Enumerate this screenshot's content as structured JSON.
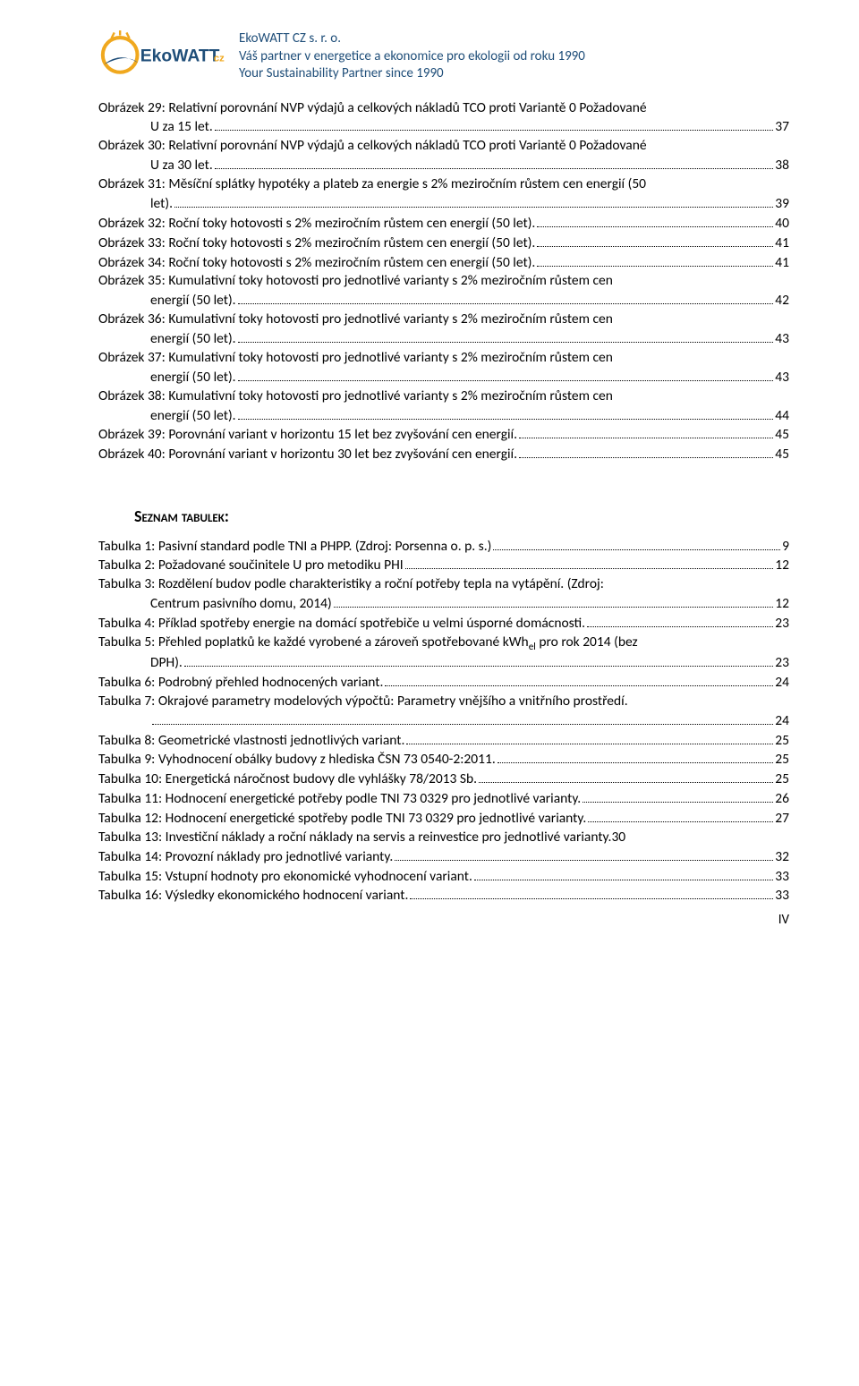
{
  "header": {
    "company": "EkoWATT CZ s. r. o.",
    "tagline_cs": "Váš partner v energetice a ekonomice pro ekologii od roku 1990",
    "tagline_en": "Your Sustainability Partner since 1990",
    "logo": {
      "text_main": "EkoWATT",
      "text_suffix": "cz",
      "colors": {
        "ring_outer": "#f0a81e",
        "ring_inner": "#ffffff",
        "swoosh": "#1f4e79",
        "text_main": "#1f4e79",
        "text_suffix": "#f0a81e"
      }
    },
    "text_color": "#1f4e79"
  },
  "figures": [
    {
      "lines": [
        "Obrázek 29: Relativní porovnání NVP výdajů a celkových nákladů TCO proti Variantě 0 Požadované",
        "U za 15 let."
      ],
      "page": "37",
      "indent_last": true
    },
    {
      "lines": [
        "Obrázek 30: Relativní porovnání NVP výdajů a celkových nákladů TCO proti Variantě 0 Požadované",
        "U za 30 let."
      ],
      "page": "38",
      "indent_last": true
    },
    {
      "lines": [
        "Obrázek 31: Měsíční splátky hypotéky a plateb za energie s 2% meziročním růstem cen energií (50",
        "let)."
      ],
      "page": "39",
      "indent_last": true
    },
    {
      "lines": [
        "Obrázek 32: Roční toky hotovosti s 2% meziročním růstem cen energií (50 let)."
      ],
      "page": "40"
    },
    {
      "lines": [
        "Obrázek 33: Roční toky hotovosti s 2% meziročním růstem cen energií (50 let)."
      ],
      "page": "41"
    },
    {
      "lines": [
        "Obrázek 34: Roční toky hotovosti s 2% meziročním růstem cen energií (50 let)."
      ],
      "page": "41"
    },
    {
      "lines": [
        "Obrázek 35: Kumulativní toky hotovosti pro jednotlivé varianty s 2% meziročním růstem cen",
        "energií (50 let)."
      ],
      "page": "42",
      "indent_last": true
    },
    {
      "lines": [
        "Obrázek 36: Kumulativní toky hotovosti pro jednotlivé varianty s 2% meziročním růstem cen",
        "energií (50 let)."
      ],
      "page": "43",
      "indent_last": true
    },
    {
      "lines": [
        "Obrázek 37: Kumulativní toky hotovosti pro jednotlivé varianty s 2% meziročním růstem cen",
        "energií (50 let)."
      ],
      "page": "43",
      "indent_last": true
    },
    {
      "lines": [
        "Obrázek 38: Kumulativní toky hotovosti pro jednotlivé varianty s 2% meziročním růstem cen",
        "energií (50 let)."
      ],
      "page": "44",
      "indent_last": true
    },
    {
      "lines": [
        "Obrázek 39: Porovnání variant v horizontu 15 let bez zvyšování cen energií."
      ],
      "page": "45"
    },
    {
      "lines": [
        "Obrázek 40: Porovnání variant v horizontu 30 let bez zvyšování cen energií."
      ],
      "page": "45"
    }
  ],
  "tables_heading": "Seznam tabulek:",
  "tables": [
    {
      "lines": [
        "Tabulka 1: Pasivní standard podle TNI a PHPP. (Zdroj: Porsenna o. p. s.)"
      ],
      "page": "9"
    },
    {
      "lines": [
        "Tabulka 2: Požadované součinitele U pro metodiku PHI"
      ],
      "page": "12"
    },
    {
      "lines": [
        "Tabulka 3: Rozdělení budov podle charakteristiky a roční potřeby tepla na vytápění. (Zdroj:",
        "Centrum pasivního domu, 2014)"
      ],
      "page": "12",
      "indent_last": true
    },
    {
      "lines": [
        "Tabulka 4: Příklad spotřeby energie na domácí spotřebiče u velmi úsporné domácnosti."
      ],
      "page": "23"
    },
    {
      "lines": [
        "Tabulka 5: Přehled poplatků ke každé vyrobené a zároveň spotřebované kWh<sub>el</sub> pro rok 2014 (bez",
        "DPH)."
      ],
      "page": "23",
      "indent_last": true,
      "html": true
    },
    {
      "lines": [
        "Tabulka 6: Podrobný přehled hodnocených variant."
      ],
      "page": "24"
    },
    {
      "lines": [
        "Tabulka 7: Okrajové parametry modelových výpočtů: Parametry vnějšího a vnitřního prostředí.",
        ""
      ],
      "page": "24",
      "full_leader_last": true
    },
    {
      "lines": [
        "Tabulka 8: Geometrické vlastnosti jednotlivých variant."
      ],
      "page": "25"
    },
    {
      "lines": [
        "Tabulka 9: Vyhodnocení obálky budovy z hlediska ČSN 73 0540-2:2011."
      ],
      "page": "25"
    },
    {
      "lines": [
        "Tabulka 10: Energetická náročnost budovy dle vyhlášky 78/2013 Sb."
      ],
      "page": "25"
    },
    {
      "lines": [
        "Tabulka 11: Hodnocení energetické potřeby podle TNI 73 0329  pro jednotlivé varianty."
      ],
      "page": "26"
    },
    {
      "lines": [
        "Tabulka 12: Hodnocení energetické spotřeby podle TNI 73 0329 pro jednotlivé varianty."
      ],
      "page": "27"
    },
    {
      "lines": [
        "Tabulka 13: Investiční náklady a roční náklady na servis a reinvestice pro jednotlivé varianty."
      ],
      "page": "30",
      "no_leader": true
    },
    {
      "lines": [
        "Tabulka 14: Provozní náklady pro jednotlivé varianty."
      ],
      "page": "32"
    },
    {
      "lines": [
        "Tabulka 15: Vstupní hodnoty pro ekonomické vyhodnocení variant."
      ],
      "page": "33"
    },
    {
      "lines": [
        "Tabulka 16: Výsledky ekonomického hodnocení variant."
      ],
      "page": "33"
    }
  ],
  "footer": {
    "page_roman": "IV"
  }
}
